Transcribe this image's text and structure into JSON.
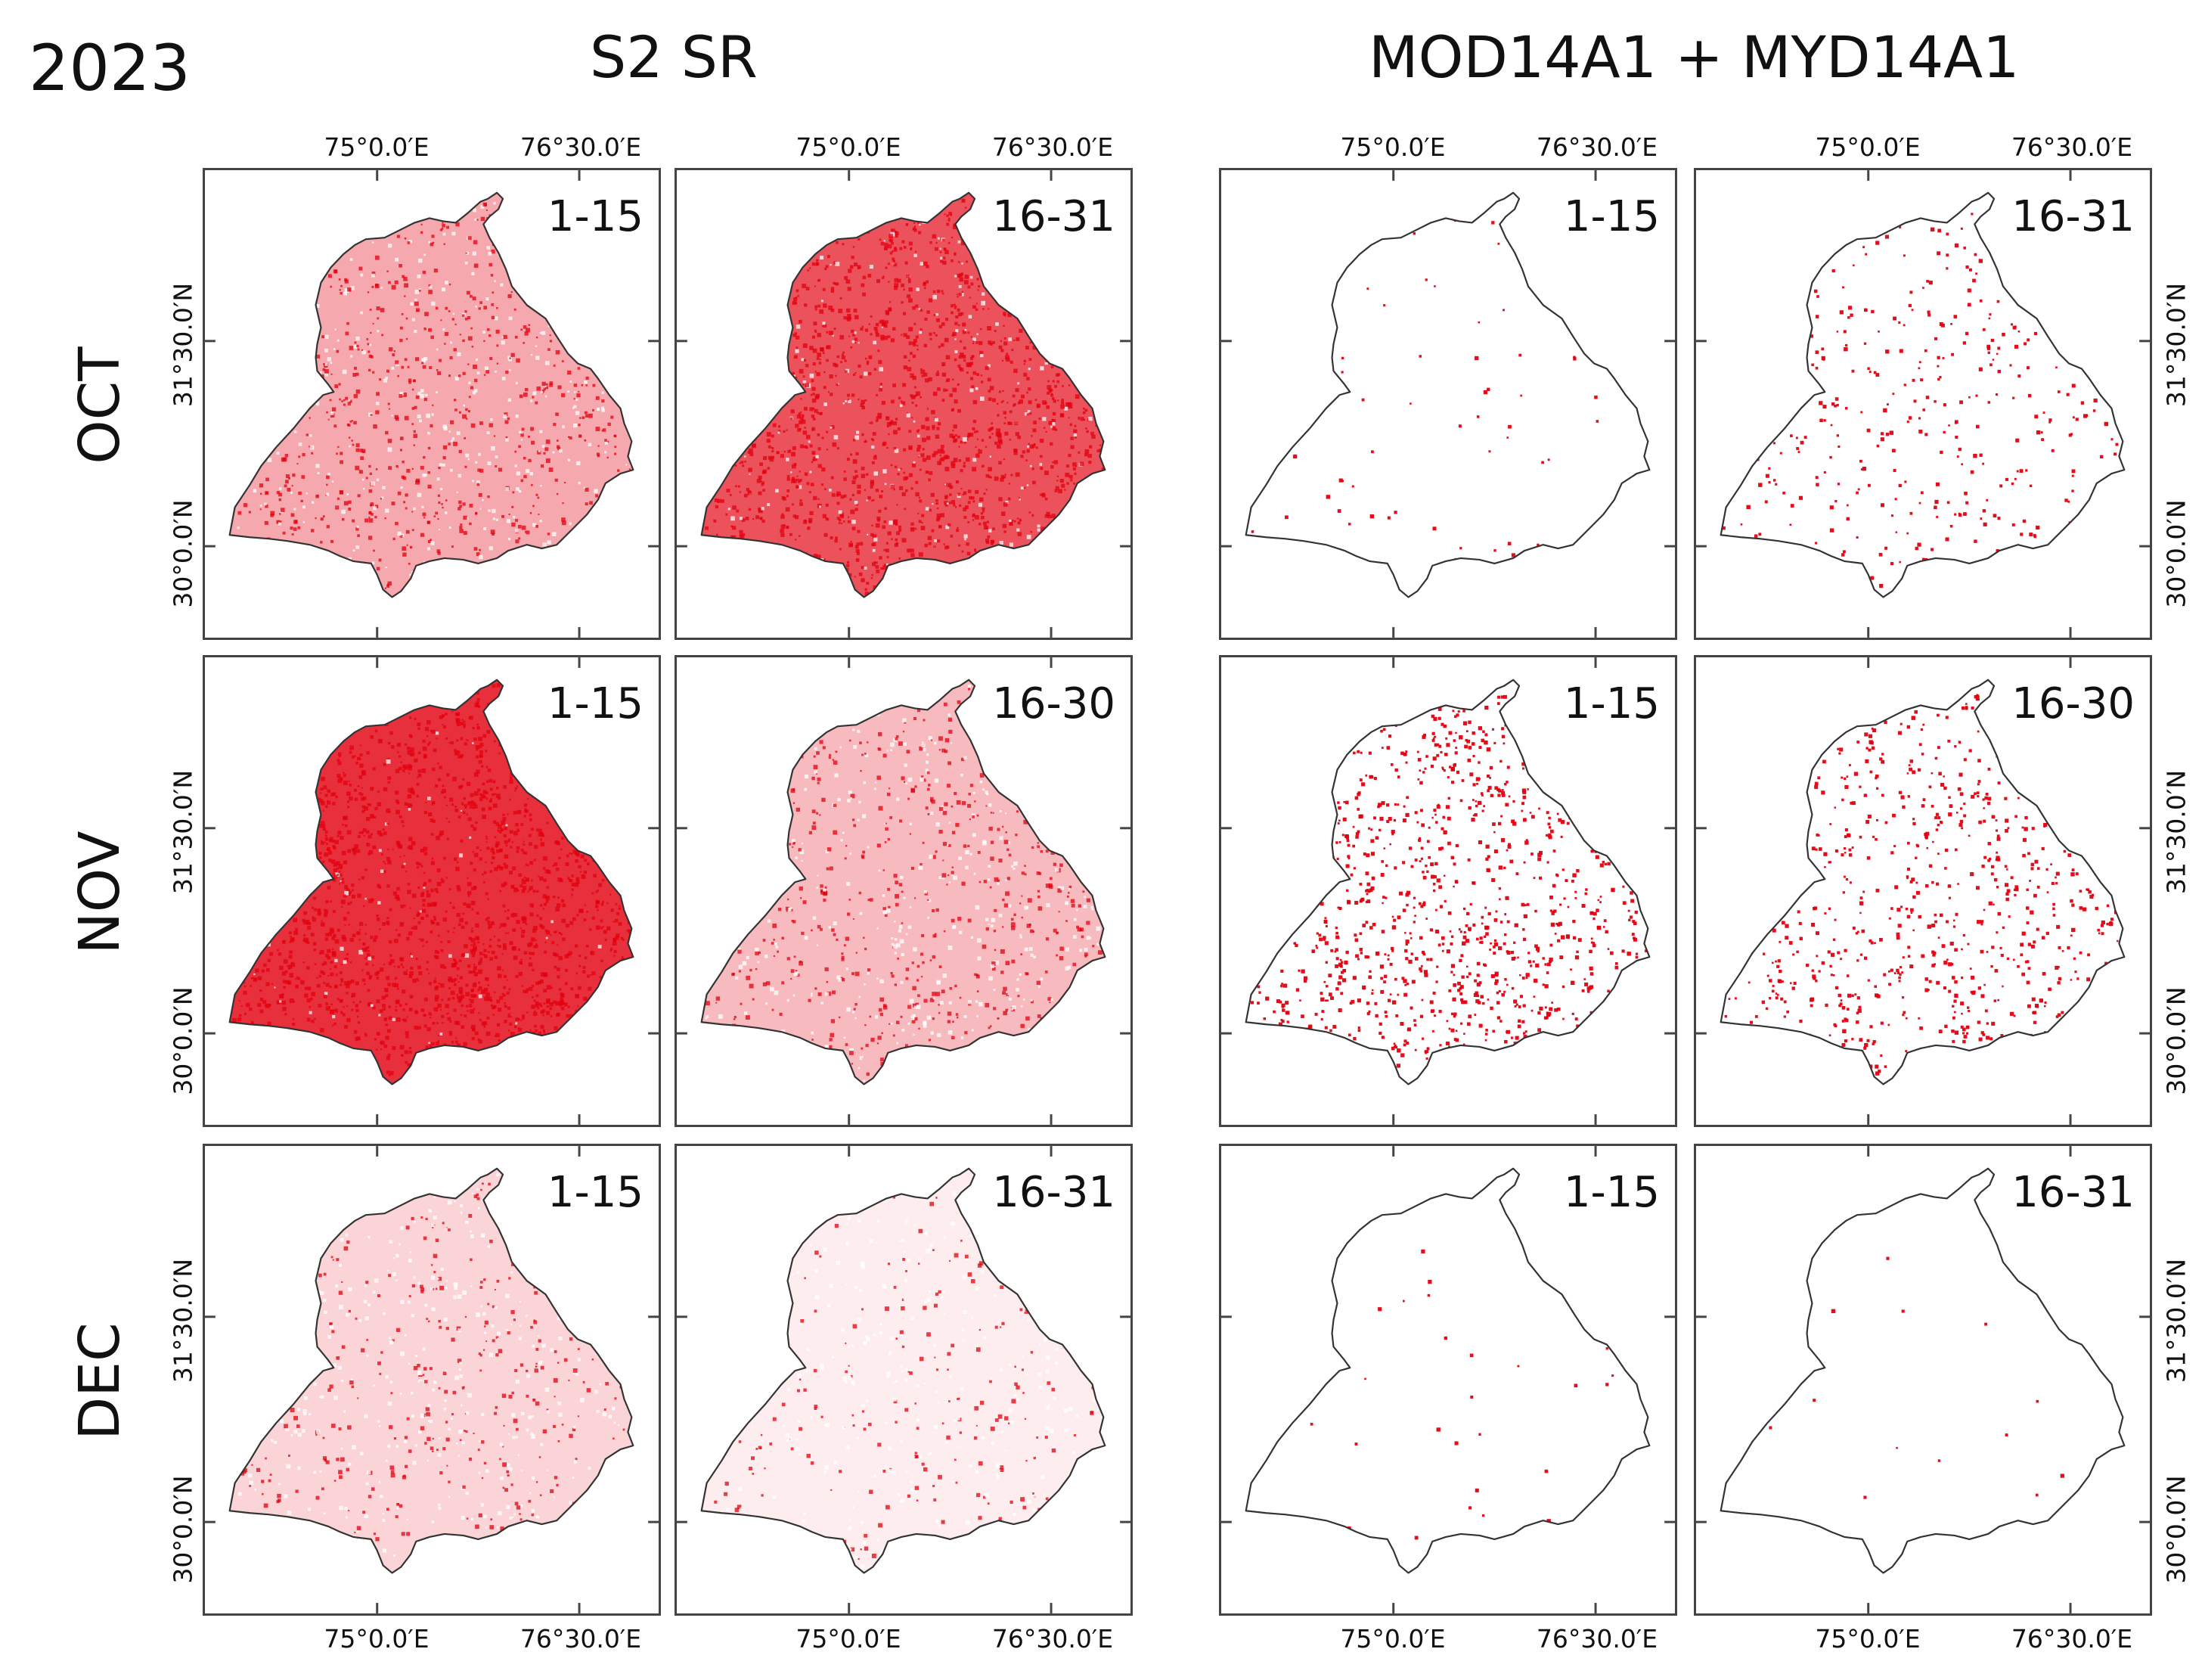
{
  "figure": {
    "year": "2023",
    "left_group_title": "S2 SR",
    "right_group_title": "MOD14A1 + MYD14A1"
  },
  "axes": {
    "lon_labels": [
      "75°0.0′E",
      "76°30.0′E"
    ],
    "lat_labels": [
      "31°30.0′N",
      "30°0.0′N"
    ]
  },
  "months": [
    "OCT",
    "NOV",
    "DEC"
  ],
  "panels": [
    {
      "label": "1-15",
      "density": 0.4
    },
    {
      "label": "16-31",
      "density": 0.8
    },
    {
      "label": "1-15",
      "density": 0.02
    },
    {
      "label": "16-31",
      "density": 0.12
    },
    {
      "label": "1-15",
      "density": 0.95
    },
    {
      "label": "16-30",
      "density": 0.32
    },
    {
      "label": "1-15",
      "density": 0.35
    },
    {
      "label": "16-30",
      "density": 0.24
    },
    {
      "label": "1-15",
      "density": 0.2
    },
    {
      "label": "16-31",
      "density": 0.08
    },
    {
      "label": "1-15",
      "density": 0.01
    },
    {
      "label": "16-31",
      "density": 0.005
    }
  ],
  "colors": {
    "burn": "#e3000f",
    "boundary": "#333333",
    "frame": "#444444"
  }
}
